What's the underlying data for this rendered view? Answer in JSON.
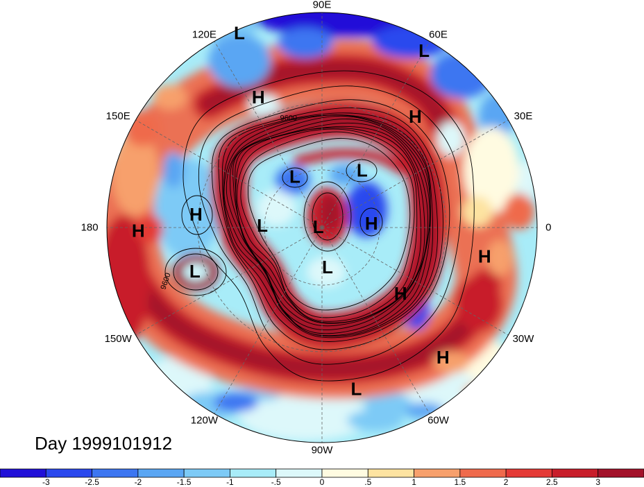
{
  "title": "Day 1999101912",
  "map": {
    "longitude_labels": [
      {
        "text": "90E",
        "lon": 90
      },
      {
        "text": "60E",
        "lon": 60
      },
      {
        "text": "30E",
        "lon": 30
      },
      {
        "text": "0",
        "lon": 0
      },
      {
        "text": "30W",
        "lon": -30
      },
      {
        "text": "60W",
        "lon": -60
      },
      {
        "text": "90W",
        "lon": -90
      },
      {
        "text": "120W",
        "lon": -120
      },
      {
        "text": "150W",
        "lon": -150
      },
      {
        "text": "180",
        "lon": 180
      },
      {
        "text": "150E",
        "lon": 150
      },
      {
        "text": "120E",
        "lon": 120
      }
    ],
    "pressure_centers": [
      {
        "text": "L",
        "lon": 113,
        "lat": 1
      },
      {
        "text": "L",
        "lon": 60,
        "lat": 3
      },
      {
        "text": "H",
        "lon": 116,
        "lat": 22
      },
      {
        "text": "H",
        "lon": 50,
        "lat": 22
      },
      {
        "text": "L",
        "lon": 118,
        "lat": 60
      },
      {
        "text": "L",
        "lon": 55,
        "lat": 54
      },
      {
        "text": "H",
        "lon": 174,
        "lat": 29
      },
      {
        "text": "H",
        "lon": -179,
        "lat": 9
      },
      {
        "text": "L",
        "lon": 178,
        "lat": 59
      },
      {
        "text": "L",
        "lon": 169,
        "lat": 88
      },
      {
        "text": "H",
        "lon": 5,
        "lat": 64
      },
      {
        "text": "L",
        "lon": -161,
        "lat": 26
      },
      {
        "text": "L",
        "lon": -82,
        "lat": 69
      },
      {
        "text": "H",
        "lon": -10,
        "lat": 15
      },
      {
        "text": "H",
        "lon": -40,
        "lat": 39
      },
      {
        "text": "H",
        "lon": -47,
        "lat": 11
      },
      {
        "text": "L",
        "lon": -78,
        "lat": 15
      }
    ],
    "contour_labels": [
      {
        "text": "9600",
        "lon": 107,
        "lat": 34
      },
      {
        "text": "9600",
        "lon": -161,
        "lat": 15
      }
    ]
  },
  "colorbar": {
    "colors": [
      "#2010d8",
      "#2a48ee",
      "#3c76f1",
      "#5aa6f3",
      "#7dcaf6",
      "#a8ecf8",
      "#ddf8fa",
      "#fffbe1",
      "#fde3a1",
      "#f7a06c",
      "#ef6a4c",
      "#e43a36",
      "#c81d2a",
      "#a3122a"
    ],
    "labels": [
      "-3",
      "-2.5",
      "-2",
      "-1.5",
      "-1",
      "-.5",
      "0",
      ".5",
      "1",
      "1.5",
      "2",
      "2.5",
      "3"
    ]
  }
}
